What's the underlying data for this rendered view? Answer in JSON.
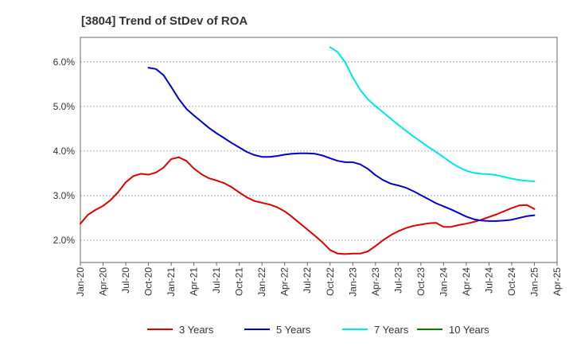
{
  "chart_data": {
    "type": "line",
    "title": "[3804]  Trend of StDev of ROA",
    "xlabel": "",
    "ylabel": "",
    "ylim": [
      1.5,
      6.55
    ],
    "y_ticks": [
      2.0,
      3.0,
      4.0,
      5.0,
      6.0
    ],
    "y_tick_labels": [
      "2.0%",
      "3.0%",
      "4.0%",
      "5.0%",
      "6.0%"
    ],
    "x_range": [
      "Jan-20",
      "Apr-25"
    ],
    "x_tick_labels": [
      "Jan-20",
      "Apr-20",
      "Jul-20",
      "Oct-20",
      "Jan-21",
      "Apr-21",
      "Jul-21",
      "Oct-21",
      "Jan-22",
      "Apr-22",
      "Jul-22",
      "Oct-22",
      "Jan-23",
      "Apr-23",
      "Jul-23",
      "Oct-23",
      "Jan-24",
      "Apr-24",
      "Jul-24",
      "Oct-24",
      "Jan-25",
      "Apr-25"
    ],
    "grid": "horizontal dashed",
    "legend_position": "bottom",
    "series": [
      {
        "name": "3 Years",
        "color": "#e00000",
        "x": [
          "Jan-20",
          "Feb-20",
          "Mar-20",
          "Apr-20",
          "May-20",
          "Jun-20",
          "Jul-20",
          "Aug-20",
          "Sep-20",
          "Oct-20",
          "Nov-20",
          "Dec-20",
          "Jan-21",
          "Feb-21",
          "Mar-21",
          "Apr-21",
          "May-21",
          "Jun-21",
          "Jul-21",
          "Aug-21",
          "Sep-21",
          "Oct-21",
          "Nov-21",
          "Dec-21",
          "Jan-22",
          "Feb-22",
          "Mar-22",
          "Apr-22",
          "May-22",
          "Jun-22",
          "Jul-22",
          "Aug-22",
          "Sep-22",
          "Oct-22",
          "Nov-22",
          "Dec-22",
          "Jan-23",
          "Feb-23",
          "Mar-23",
          "Apr-23",
          "May-23",
          "Jun-23",
          "Jul-23",
          "Aug-23",
          "Sep-23",
          "Oct-23",
          "Nov-23",
          "Dec-23",
          "Jan-24",
          "Feb-24",
          "Mar-24",
          "Apr-24",
          "May-24",
          "Jun-24",
          "Jul-24",
          "Aug-24",
          "Sep-24",
          "Oct-24",
          "Nov-24",
          "Dec-24",
          "Jan-25"
        ],
        "values": [
          2.37,
          2.57,
          2.68,
          2.77,
          2.9,
          3.08,
          3.3,
          3.44,
          3.49,
          3.47,
          3.52,
          3.63,
          3.82,
          3.86,
          3.78,
          3.61,
          3.48,
          3.39,
          3.34,
          3.28,
          3.19,
          3.07,
          2.96,
          2.88,
          2.84,
          2.8,
          2.74,
          2.65,
          2.52,
          2.38,
          2.24,
          2.1,
          1.95,
          1.78,
          1.7,
          1.69,
          1.7,
          1.7,
          1.75,
          1.87,
          2.0,
          2.11,
          2.2,
          2.27,
          2.32,
          2.35,
          2.38,
          2.39,
          2.3,
          2.3,
          2.34,
          2.37,
          2.41,
          2.46,
          2.52,
          2.58,
          2.65,
          2.72,
          2.78,
          2.79,
          2.7
        ]
      },
      {
        "name": "5 Years",
        "color": "#0000cc",
        "x": [
          "Oct-20",
          "Nov-20",
          "Dec-20",
          "Jan-21",
          "Feb-21",
          "Mar-21",
          "Apr-21",
          "May-21",
          "Jun-21",
          "Jul-21",
          "Aug-21",
          "Sep-21",
          "Oct-21",
          "Nov-21",
          "Dec-21",
          "Jan-22",
          "Feb-22",
          "Mar-22",
          "Apr-22",
          "May-22",
          "Jun-22",
          "Jul-22",
          "Aug-22",
          "Sep-22",
          "Oct-22",
          "Nov-22",
          "Dec-22",
          "Jan-23",
          "Feb-23",
          "Mar-23",
          "Apr-23",
          "May-23",
          "Jun-23",
          "Jul-23",
          "Aug-23",
          "Sep-23",
          "Oct-23",
          "Nov-23",
          "Dec-23",
          "Jan-24",
          "Feb-24",
          "Mar-24",
          "Apr-24",
          "May-24",
          "Jun-24",
          "Jul-24",
          "Aug-24",
          "Sep-24",
          "Oct-24",
          "Nov-24",
          "Dec-24",
          "Jan-25"
        ],
        "values": [
          5.87,
          5.84,
          5.7,
          5.44,
          5.17,
          4.95,
          4.8,
          4.66,
          4.52,
          4.4,
          4.29,
          4.18,
          4.08,
          3.98,
          3.91,
          3.87,
          3.87,
          3.89,
          3.92,
          3.94,
          3.95,
          3.95,
          3.94,
          3.9,
          3.84,
          3.78,
          3.75,
          3.75,
          3.7,
          3.6,
          3.46,
          3.35,
          3.27,
          3.23,
          3.18,
          3.1,
          3.01,
          2.92,
          2.83,
          2.76,
          2.69,
          2.61,
          2.53,
          2.47,
          2.44,
          2.43,
          2.43,
          2.44,
          2.46,
          2.5,
          2.54,
          2.56
        ]
      },
      {
        "name": "7 Years",
        "color": "#00e5e5",
        "x": [
          "Oct-22",
          "Nov-22",
          "Dec-22",
          "Jan-23",
          "Feb-23",
          "Mar-23",
          "Apr-23",
          "May-23",
          "Jun-23",
          "Jul-23",
          "Aug-23",
          "Sep-23",
          "Oct-23",
          "Nov-23",
          "Dec-23",
          "Jan-24",
          "Feb-24",
          "Mar-24",
          "Apr-24",
          "May-24",
          "Jun-24",
          "Jul-24",
          "Aug-24",
          "Sep-24",
          "Oct-24",
          "Nov-24",
          "Dec-24",
          "Jan-25"
        ],
        "values": [
          6.33,
          6.22,
          5.99,
          5.65,
          5.37,
          5.16,
          5.01,
          4.87,
          4.73,
          4.59,
          4.46,
          4.33,
          4.21,
          4.09,
          3.98,
          3.86,
          3.74,
          3.64,
          3.56,
          3.51,
          3.49,
          3.48,
          3.46,
          3.42,
          3.38,
          3.35,
          3.33,
          3.32
        ]
      },
      {
        "name": "10 Years",
        "color": "#008000",
        "x": [],
        "values": []
      }
    ]
  }
}
